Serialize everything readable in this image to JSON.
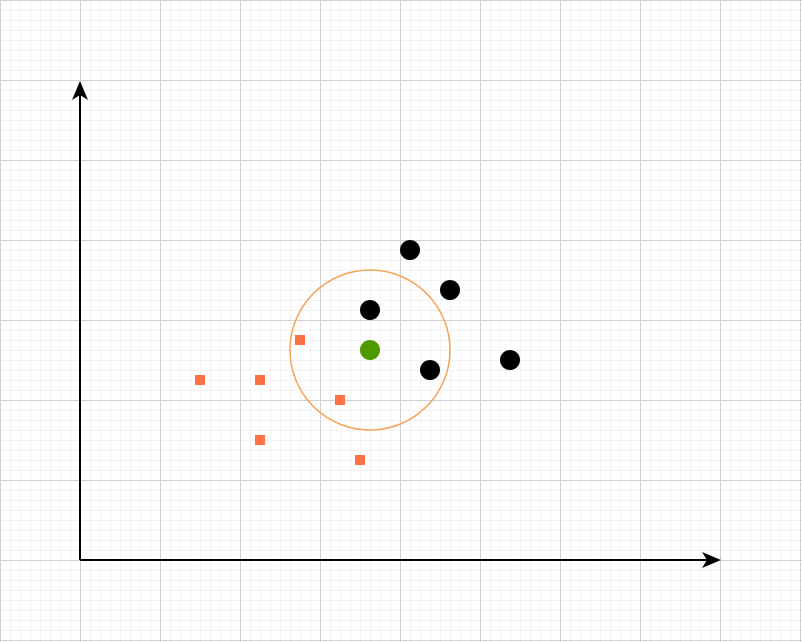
{
  "colors": {
    "background": "#ffffff",
    "grid_minor": "#f2f2f2",
    "grid_major": "#d0d0d0",
    "axis": "#000000",
    "class_a": "#ff7043",
    "class_b": "#000000",
    "query_point": "#4d9900",
    "neighborhood_circle": "#f5a45a"
  },
  "chart_data": {
    "type": "scatter",
    "x_range": [
      0,
      16
    ],
    "y_range": [
      0,
      12
    ],
    "grid": true,
    "series": [
      {
        "marker": "square",
        "color_key": "class_a",
        "points": [
          [
            3,
            4.5
          ],
          [
            4.5,
            4.5
          ],
          [
            4.5,
            3
          ],
          [
            5.5,
            5.5
          ],
          [
            6.5,
            4
          ],
          [
            7,
            2.5
          ]
        ]
      },
      {
        "marker": "circle",
        "color_key": "class_b",
        "points": [
          [
            8.25,
            7.75
          ],
          [
            9.25,
            6.75
          ],
          [
            7.25,
            6.25
          ],
          [
            8.75,
            4.75
          ],
          [
            10.75,
            5
          ]
        ]
      },
      {
        "marker": "circle",
        "color_key": "query_point",
        "points": [
          [
            7.25,
            5.25
          ]
        ]
      }
    ],
    "neighborhood": {
      "center": [
        7.25,
        5.25
      ],
      "radius": 2,
      "color_key": "neighborhood_circle"
    }
  }
}
